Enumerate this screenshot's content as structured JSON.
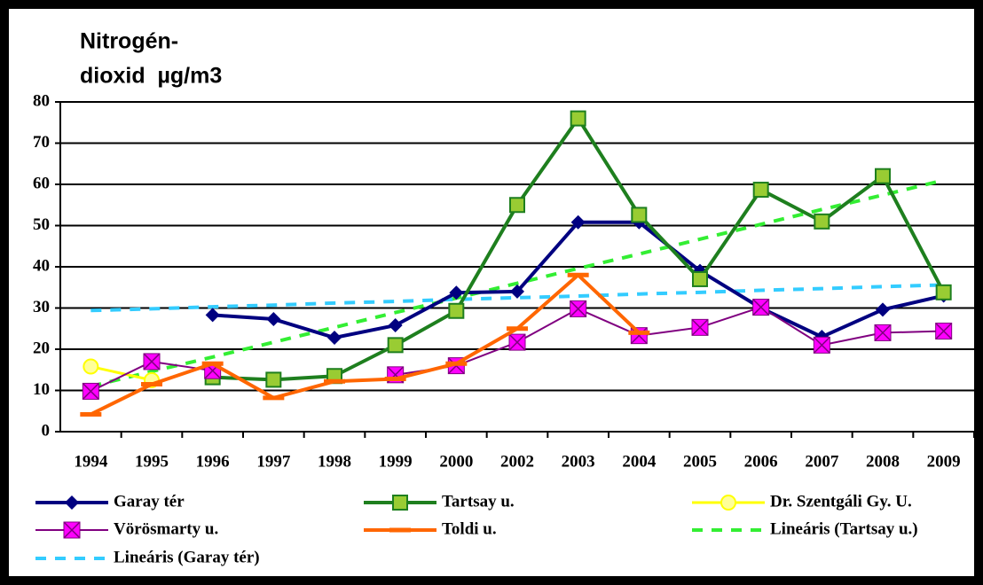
{
  "chart_data": {
    "type": "line",
    "ylabel": [
      "Nitrogén-",
      "dioxid  µg/m3"
    ],
    "categories": [
      "1994",
      "1995",
      "1996",
      "1997",
      "1998",
      "1999",
      "2000",
      "2002",
      "2003",
      "2004",
      "2005",
      "2006",
      "2007",
      "2008",
      "2009"
    ],
    "ylim": [
      0,
      80
    ],
    "yticks": [
      0,
      10,
      20,
      30,
      40,
      50,
      60,
      70,
      80
    ],
    "grid": true,
    "series": [
      {
        "name": "Garay tér",
        "color": "#000080",
        "marker": "diamond",
        "width": 4,
        "values": [
          null,
          null,
          28.3,
          27.3,
          22.8,
          25.8,
          33.7,
          34,
          50.8,
          50.8,
          39,
          30,
          23,
          29.6,
          33
        ]
      },
      {
        "name": "Tartsay u.",
        "color": "#1e7f1e",
        "marker": "square",
        "marker_color": "#99cc33",
        "width": 4,
        "values": [
          null,
          null,
          13.2,
          12.6,
          13.5,
          21,
          29.3,
          55,
          76,
          52.6,
          37,
          58.7,
          51,
          62,
          33.8
        ]
      },
      {
        "name": "Dr. Szentgáli Gy. U.",
        "color": "#ffff00",
        "marker": "circle",
        "marker_color": "#ffff99",
        "width": 3,
        "values": [
          15.8,
          12.5,
          null,
          null,
          null,
          null,
          null,
          null,
          null,
          null,
          null,
          null,
          null,
          null,
          null
        ]
      },
      {
        "name": "Vörösmarty u.",
        "color": "#800080",
        "marker": "xsquare",
        "marker_color": "#ff00ff",
        "width": 2,
        "values": [
          9.8,
          17,
          14.8,
          null,
          null,
          13.8,
          16,
          21.7,
          29.8,
          23.3,
          25.3,
          30.2,
          21,
          24,
          24.4
        ]
      },
      {
        "name": "Toldi u.",
        "color": "#ff6600",
        "marker": "dash",
        "width": 4,
        "values": [
          4.2,
          11.5,
          16.5,
          8.2,
          12.2,
          12.8,
          16.5,
          25,
          38,
          24,
          null,
          null,
          null,
          null,
          null
        ]
      },
      {
        "name": "Lineáris (Tartsay u.)",
        "color": "#33ee33",
        "dash": true,
        "width": 4,
        "values": [
          11,
          14.6,
          18.1,
          21.7,
          25.3,
          28.9,
          32.4,
          36,
          39.6,
          43.1,
          46.7,
          50.3,
          53.9,
          57.4,
          61
        ]
      },
      {
        "name": "Lineáris (Garay tér)",
        "color": "#33ccff",
        "dash": true,
        "width": 4,
        "values": [
          29.4,
          29.8,
          30.3,
          30.7,
          31.2,
          31.6,
          32.1,
          32.5,
          32.9,
          33.4,
          33.8,
          34.3,
          34.7,
          35.2,
          35.6
        ]
      }
    ]
  }
}
